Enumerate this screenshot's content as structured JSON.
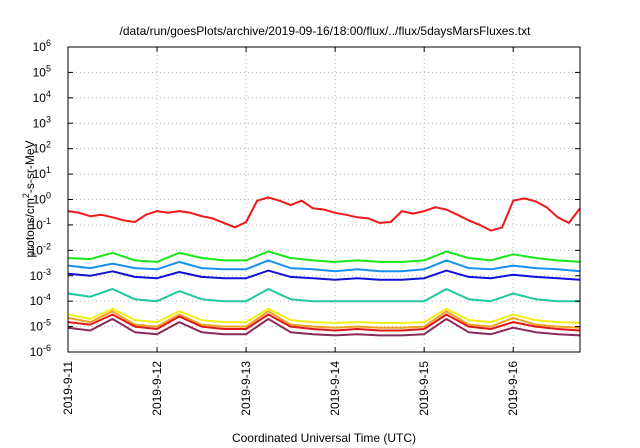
{
  "chart_data": {
    "type": "line",
    "title": "/data/run/goesPlots/archive/2019-09-16/18:00/flux/../flux/5daysMarsFluxes.txt",
    "xlabel": "Coordinated Universal Time (UTC)",
    "ylabel_parts": [
      "protons/cm",
      "2",
      "-s-sr-MeV"
    ],
    "y_scale": "log",
    "ylim": [
      1e-06,
      1000000.0
    ],
    "y_ticks": [
      {
        "base": "10",
        "exp": "-6",
        "value": 1e-06
      },
      {
        "base": "10",
        "exp": "-5",
        "value": 1e-05
      },
      {
        "base": "10",
        "exp": "-4",
        "value": 0.0001
      },
      {
        "base": "10",
        "exp": "-3",
        "value": 0.001
      },
      {
        "base": "10",
        "exp": "-2",
        "value": 0.01
      },
      {
        "base": "10",
        "exp": "-1",
        "value": 0.1
      },
      {
        "base": "10",
        "exp": "0",
        "value": 1
      },
      {
        "base": "10",
        "exp": "1",
        "value": 10
      },
      {
        "base": "10",
        "exp": "2",
        "value": 100
      },
      {
        "base": "10",
        "exp": "3",
        "value": 1000
      },
      {
        "base": "10",
        "exp": "4",
        "value": 10000
      },
      {
        "base": "10",
        "exp": "5",
        "value": 100000
      },
      {
        "base": "10",
        "exp": "6",
        "value": 1000000
      }
    ],
    "xlim": [
      "2019-09-11T00:00",
      "2019-09-16T18:00"
    ],
    "x_ticks": [
      {
        "label": "2019-9-11",
        "date": "2019-09-11"
      },
      {
        "label": "2019-9-12",
        "date": "2019-09-12"
      },
      {
        "label": "2019-9-13",
        "date": "2019-09-13"
      },
      {
        "label": "2019-9-14",
        "date": "2019-09-14"
      },
      {
        "label": "2019-9-15",
        "date": "2019-09-15"
      },
      {
        "label": "2019-9-16",
        "date": "2019-09-16"
      }
    ],
    "grid": true,
    "series": [
      {
        "color": "#f01818",
        "x": [
          "2019-09-11T00:00",
          "2019-09-11T03:00",
          "2019-09-11T06:00",
          "2019-09-11T09:00",
          "2019-09-11T12:00",
          "2019-09-11T15:00",
          "2019-09-11T18:00",
          "2019-09-11T21:00",
          "2019-09-12T00:00",
          "2019-09-12T03:00",
          "2019-09-12T06:00",
          "2019-09-12T09:00",
          "2019-09-12T12:00",
          "2019-09-12T15:00",
          "2019-09-12T18:00",
          "2019-09-12T21:00",
          "2019-09-13T00:00",
          "2019-09-13T03:00",
          "2019-09-13T06:00",
          "2019-09-13T09:00",
          "2019-09-13T12:00",
          "2019-09-13T15:00",
          "2019-09-13T18:00",
          "2019-09-13T21:00",
          "2019-09-14T00:00",
          "2019-09-14T03:00",
          "2019-09-14T06:00",
          "2019-09-14T09:00",
          "2019-09-14T12:00",
          "2019-09-14T15:00",
          "2019-09-14T18:00",
          "2019-09-14T21:00",
          "2019-09-15T00:00",
          "2019-09-15T03:00",
          "2019-09-15T06:00",
          "2019-09-15T09:00",
          "2019-09-15T12:00",
          "2019-09-15T15:00",
          "2019-09-15T18:00",
          "2019-09-15T21:00",
          "2019-09-16T00:00",
          "2019-09-16T03:00",
          "2019-09-16T06:00",
          "2019-09-16T09:00",
          "2019-09-16T12:00",
          "2019-09-16T15:00",
          "2019-09-16T18:00"
        ],
        "y": [
          0.35,
          0.3,
          0.22,
          0.25,
          0.2,
          0.15,
          0.13,
          0.25,
          0.35,
          0.3,
          0.35,
          0.3,
          0.22,
          0.18,
          0.12,
          0.08,
          0.13,
          0.9,
          1.2,
          0.9,
          0.6,
          0.9,
          0.45,
          0.4,
          0.3,
          0.25,
          0.2,
          0.18,
          0.12,
          0.13,
          0.35,
          0.28,
          0.35,
          0.5,
          0.4,
          0.25,
          0.15,
          0.1,
          0.06,
          0.08,
          0.9,
          1.1,
          0.85,
          0.5,
          0.2,
          0.12,
          0.45
        ]
      },
      {
        "color": "#18e818",
        "x": [
          "2019-09-11T00:00",
          "2019-09-11T06:00",
          "2019-09-11T12:00",
          "2019-09-11T18:00",
          "2019-09-12T00:00",
          "2019-09-12T06:00",
          "2019-09-12T12:00",
          "2019-09-12T18:00",
          "2019-09-13T00:00",
          "2019-09-13T06:00",
          "2019-09-13T12:00",
          "2019-09-13T18:00",
          "2019-09-14T00:00",
          "2019-09-14T06:00",
          "2019-09-14T12:00",
          "2019-09-14T18:00",
          "2019-09-15T00:00",
          "2019-09-15T06:00",
          "2019-09-15T12:00",
          "2019-09-15T18:00",
          "2019-09-16T00:00",
          "2019-09-16T06:00",
          "2019-09-16T12:00",
          "2019-09-16T18:00"
        ],
        "y": [
          0.005,
          0.0045,
          0.008,
          0.004,
          0.0035,
          0.008,
          0.005,
          0.004,
          0.004,
          0.009,
          0.005,
          0.004,
          0.0035,
          0.004,
          0.0035,
          0.0035,
          0.004,
          0.009,
          0.005,
          0.004,
          0.007,
          0.005,
          0.004,
          0.0035
        ]
      },
      {
        "color": "#1890f0",
        "x": [
          "2019-09-11T00:00",
          "2019-09-11T06:00",
          "2019-09-11T12:00",
          "2019-09-11T18:00",
          "2019-09-12T00:00",
          "2019-09-12T06:00",
          "2019-09-12T12:00",
          "2019-09-12T18:00",
          "2019-09-13T00:00",
          "2019-09-13T06:00",
          "2019-09-13T12:00",
          "2019-09-13T18:00",
          "2019-09-14T00:00",
          "2019-09-14T06:00",
          "2019-09-14T12:00",
          "2019-09-14T18:00",
          "2019-09-15T00:00",
          "2019-09-15T06:00",
          "2019-09-15T12:00",
          "2019-09-15T18:00",
          "2019-09-16T00:00",
          "2019-09-16T06:00",
          "2019-09-16T12:00",
          "2019-09-16T18:00"
        ],
        "y": [
          0.0025,
          0.002,
          0.003,
          0.002,
          0.0018,
          0.0035,
          0.002,
          0.0018,
          0.0018,
          0.004,
          0.002,
          0.0018,
          0.0015,
          0.0018,
          0.0015,
          0.0015,
          0.0018,
          0.004,
          0.002,
          0.0018,
          0.0025,
          0.002,
          0.0018,
          0.0015
        ]
      },
      {
        "color": "#1010d8",
        "x": [
          "2019-09-11T00:00",
          "2019-09-11T06:00",
          "2019-09-11T12:00",
          "2019-09-11T18:00",
          "2019-09-12T00:00",
          "2019-09-12T06:00",
          "2019-09-12T12:00",
          "2019-09-12T18:00",
          "2019-09-13T00:00",
          "2019-09-13T06:00",
          "2019-09-13T12:00",
          "2019-09-13T18:00",
          "2019-09-14T00:00",
          "2019-09-14T06:00",
          "2019-09-14T12:00",
          "2019-09-14T18:00",
          "2019-09-15T00:00",
          "2019-09-15T06:00",
          "2019-09-15T12:00",
          "2019-09-15T18:00",
          "2019-09-16T00:00",
          "2019-09-16T06:00",
          "2019-09-16T12:00",
          "2019-09-16T18:00"
        ],
        "y": [
          0.0012,
          0.001,
          0.0015,
          0.0009,
          0.0008,
          0.0014,
          0.0009,
          0.0008,
          0.0008,
          0.0016,
          0.0009,
          0.0008,
          0.0007,
          0.0008,
          0.0007,
          0.0007,
          0.0008,
          0.0016,
          0.0009,
          0.0008,
          0.0011,
          0.0009,
          0.0008,
          0.0007
        ]
      },
      {
        "color": "#20c8a0",
        "x": [
          "2019-09-11T00:00",
          "2019-09-11T06:00",
          "2019-09-11T12:00",
          "2019-09-11T18:00",
          "2019-09-12T00:00",
          "2019-09-12T06:00",
          "2019-09-12T12:00",
          "2019-09-12T18:00",
          "2019-09-13T00:00",
          "2019-09-13T06:00",
          "2019-09-13T12:00",
          "2019-09-13T18:00",
          "2019-09-14T00:00",
          "2019-09-14T06:00",
          "2019-09-14T12:00",
          "2019-09-14T18:00",
          "2019-09-15T00:00",
          "2019-09-15T06:00",
          "2019-09-15T12:00",
          "2019-09-15T18:00",
          "2019-09-16T00:00",
          "2019-09-16T06:00",
          "2019-09-16T12:00",
          "2019-09-16T18:00"
        ],
        "y": [
          0.0002,
          0.00015,
          0.0003,
          0.00012,
          0.0001,
          0.00025,
          0.00012,
          0.0001,
          0.0001,
          0.0003,
          0.00012,
          0.0001,
          0.0001,
          0.0001,
          0.0001,
          0.0001,
          0.0001,
          0.0003,
          0.00012,
          0.0001,
          0.0002,
          0.00012,
          0.0001,
          0.0001
        ]
      },
      {
        "color": "#f0f018",
        "x": [
          "2019-09-11T00:00",
          "2019-09-11T06:00",
          "2019-09-11T12:00",
          "2019-09-11T18:00",
          "2019-09-12T00:00",
          "2019-09-12T06:00",
          "2019-09-12T12:00",
          "2019-09-12T18:00",
          "2019-09-13T00:00",
          "2019-09-13T06:00",
          "2019-09-13T12:00",
          "2019-09-13T18:00",
          "2019-09-14T00:00",
          "2019-09-14T06:00",
          "2019-09-14T12:00",
          "2019-09-14T18:00",
          "2019-09-15T00:00",
          "2019-09-15T06:00",
          "2019-09-15T12:00",
          "2019-09-15T18:00",
          "2019-09-16T00:00",
          "2019-09-16T06:00",
          "2019-09-16T12:00",
          "2019-09-16T18:00"
        ],
        "y": [
          3e-05,
          2e-05,
          5e-05,
          1.8e-05,
          1.5e-05,
          4e-05,
          1.8e-05,
          1.5e-05,
          1.5e-05,
          5e-05,
          1.8e-05,
          1.5e-05,
          1.4e-05,
          1.5e-05,
          1.4e-05,
          1.4e-05,
          1.5e-05,
          5e-05,
          1.8e-05,
          1.5e-05,
          3e-05,
          1.8e-05,
          1.5e-05,
          1.4e-05
        ]
      },
      {
        "color": "#f0a020",
        "x": [
          "2019-09-11T00:00",
          "2019-09-11T06:00",
          "2019-09-11T12:00",
          "2019-09-11T18:00",
          "2019-09-12T00:00",
          "2019-09-12T06:00",
          "2019-09-12T12:00",
          "2019-09-12T18:00",
          "2019-09-13T00:00",
          "2019-09-13T06:00",
          "2019-09-13T12:00",
          "2019-09-13T18:00",
          "2019-09-14T00:00",
          "2019-09-14T06:00",
          "2019-09-14T12:00",
          "2019-09-14T18:00",
          "2019-09-15T00:00",
          "2019-09-15T06:00",
          "2019-09-15T12:00",
          "2019-09-15T18:00",
          "2019-09-16T00:00",
          "2019-09-16T06:00",
          "2019-09-16T12:00",
          "2019-09-16T18:00"
        ],
        "y": [
          2.2e-05,
          1.5e-05,
          4e-05,
          1.2e-05,
          1e-05,
          3e-05,
          1.2e-05,
          1e-05,
          1e-05,
          4e-05,
          1.2e-05,
          1e-05,
          9e-06,
          1e-05,
          9e-06,
          9e-06,
          1e-05,
          4e-05,
          1.2e-05,
          1e-05,
          2.2e-05,
          1.2e-05,
          1e-05,
          9e-06
        ]
      },
      {
        "color": "#e01818",
        "x": [
          "2019-09-11T00:00",
          "2019-09-11T06:00",
          "2019-09-11T12:00",
          "2019-09-11T18:00",
          "2019-09-12T00:00",
          "2019-09-12T06:00",
          "2019-09-12T12:00",
          "2019-09-12T18:00",
          "2019-09-13T00:00",
          "2019-09-13T06:00",
          "2019-09-13T12:00",
          "2019-09-13T18:00",
          "2019-09-14T00:00",
          "2019-09-14T06:00",
          "2019-09-14T12:00",
          "2019-09-14T18:00",
          "2019-09-15T00:00",
          "2019-09-15T06:00",
          "2019-09-15T12:00",
          "2019-09-15T18:00",
          "2019-09-16T00:00",
          "2019-09-16T06:00",
          "2019-09-16T12:00",
          "2019-09-16T18:00"
        ],
        "y": [
          1.5e-05,
          1.2e-05,
          3e-05,
          1e-05,
          8e-06,
          2.5e-05,
          1e-05,
          8e-06,
          8e-06,
          3e-05,
          1e-05,
          8e-06,
          7e-06,
          8e-06,
          7e-06,
          7e-06,
          8e-06,
          3e-05,
          1e-05,
          8e-06,
          1.5e-05,
          1e-05,
          8e-06,
          7e-06
        ]
      },
      {
        "color": "#8a2a5a",
        "x": [
          "2019-09-11T00:00",
          "2019-09-11T06:00",
          "2019-09-11T12:00",
          "2019-09-11T18:00",
          "2019-09-12T00:00",
          "2019-09-12T06:00",
          "2019-09-12T12:00",
          "2019-09-12T18:00",
          "2019-09-13T00:00",
          "2019-09-13T06:00",
          "2019-09-13T12:00",
          "2019-09-13T18:00",
          "2019-09-14T00:00",
          "2019-09-14T06:00",
          "2019-09-14T12:00",
          "2019-09-14T18:00",
          "2019-09-15T00:00",
          "2019-09-15T06:00",
          "2019-09-15T12:00",
          "2019-09-15T18:00",
          "2019-09-16T00:00",
          "2019-09-16T06:00",
          "2019-09-16T12:00",
          "2019-09-16T18:00"
        ],
        "y": [
          9e-06,
          7e-06,
          2e-05,
          6e-06,
          5e-06,
          1.5e-05,
          6e-06,
          5e-06,
          5e-06,
          2e-05,
          6e-06,
          5e-06,
          4.5e-06,
          5e-06,
          4.5e-06,
          4.5e-06,
          5e-06,
          2e-05,
          6e-06,
          5e-06,
          9e-06,
          6e-06,
          5e-06,
          4.5e-06
        ]
      }
    ]
  }
}
